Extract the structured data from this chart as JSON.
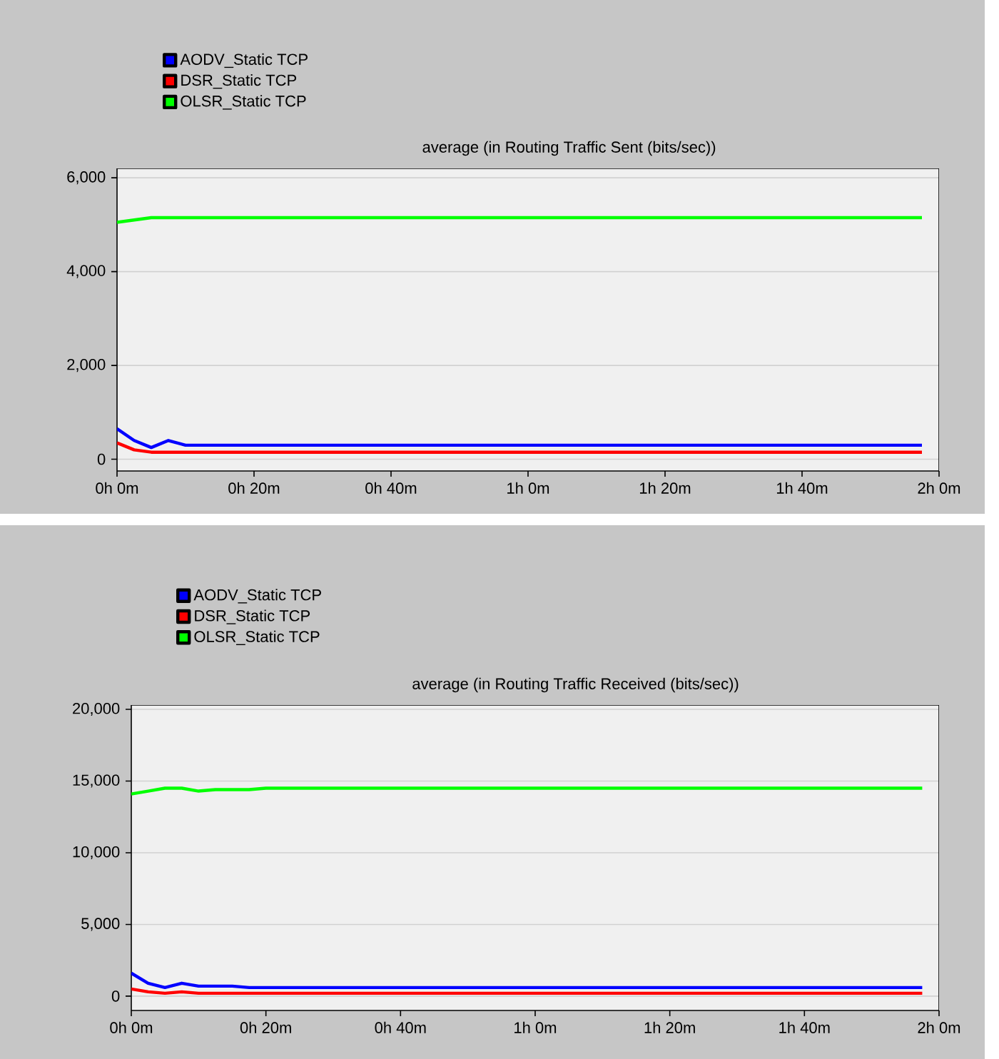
{
  "chart_data": [
    {
      "type": "line",
      "title": "average (in Routing Traffic Sent (bits/sec))",
      "categories": [
        "0h 0m",
        null,
        null,
        null,
        null,
        null,
        null,
        null,
        "0h 20m",
        null,
        null,
        null,
        null,
        null,
        null,
        null,
        "0h 40m",
        null,
        null,
        null,
        null,
        null,
        null,
        null,
        "1h 0m",
        null,
        null,
        null,
        null,
        null,
        null,
        null,
        "1h 20m",
        null,
        null,
        null,
        null,
        null,
        null,
        null,
        "1h 40m",
        null,
        null,
        null,
        null,
        null,
        null,
        null,
        "2h 0m"
      ],
      "series": [
        {
          "name": "AODV_Static TCP",
          "color": "#0000ff",
          "values": [
            650,
            400,
            250,
            400,
            300,
            300,
            300,
            300,
            300,
            300,
            300,
            300,
            300,
            300,
            300,
            300,
            300,
            300,
            300,
            300,
            300,
            300,
            300,
            300,
            300,
            300,
            300,
            300,
            300,
            300,
            300,
            300,
            300,
            300,
            300,
            300,
            300,
            300,
            300,
            300,
            300,
            300,
            300,
            300,
            300,
            300,
            300,
            300,
            null
          ]
        },
        {
          "name": "DSR_Static TCP",
          "color": "#ff0000",
          "values": [
            350,
            200,
            150,
            150,
            150,
            150,
            150,
            150,
            150,
            150,
            150,
            150,
            150,
            150,
            150,
            150,
            150,
            150,
            150,
            150,
            150,
            150,
            150,
            150,
            150,
            150,
            150,
            150,
            150,
            150,
            150,
            150,
            150,
            150,
            150,
            150,
            150,
            150,
            150,
            150,
            150,
            150,
            150,
            150,
            150,
            150,
            150,
            150,
            null
          ]
        },
        {
          "name": "OLSR_Static TCP",
          "color": "#00ff00",
          "values": [
            5050,
            5100,
            5150,
            5150,
            5150,
            5150,
            5150,
            5150,
            5150,
            5150,
            5150,
            5150,
            5150,
            5150,
            5150,
            5150,
            5150,
            5150,
            5150,
            5150,
            5150,
            5150,
            5150,
            5150,
            5150,
            5150,
            5150,
            5150,
            5150,
            5150,
            5150,
            5150,
            5150,
            5150,
            5150,
            5150,
            5150,
            5150,
            5150,
            5150,
            5150,
            5150,
            5150,
            5150,
            5150,
            5150,
            5150,
            5150,
            null
          ]
        }
      ],
      "ylim": [
        -250,
        6200
      ],
      "yticks": [
        0,
        {
          "value": 2000,
          "label": "2,000"
        },
        {
          "value": 4000,
          "label": "4,000"
        },
        {
          "value": 6000,
          "label": "6,000"
        }
      ],
      "grid": "y",
      "legend": "top left",
      "marker": "none",
      "line_style": "solid"
    },
    {
      "type": "line",
      "title": "average (in Routing Traffic Received (bits/sec))",
      "categories": [
        "0h 0m",
        null,
        null,
        null,
        null,
        null,
        null,
        null,
        "0h 20m",
        null,
        null,
        null,
        null,
        null,
        null,
        null,
        "0h 40m",
        null,
        null,
        null,
        null,
        null,
        null,
        null,
        "1h 0m",
        null,
        null,
        null,
        null,
        null,
        null,
        null,
        "1h 20m",
        null,
        null,
        null,
        null,
        null,
        null,
        null,
        "1h 40m",
        null,
        null,
        null,
        null,
        null,
        null,
        null,
        "2h 0m"
      ],
      "series": [
        {
          "name": "AODV_Static TCP",
          "color": "#0000ff",
          "values": [
            1600,
            900,
            600,
            900,
            700,
            700,
            700,
            600,
            600,
            600,
            600,
            600,
            600,
            600,
            600,
            600,
            600,
            600,
            600,
            600,
            600,
            600,
            600,
            600,
            600,
            600,
            600,
            600,
            600,
            600,
            600,
            600,
            600,
            600,
            600,
            600,
            600,
            600,
            600,
            600,
            600,
            600,
            600,
            600,
            600,
            600,
            600,
            600,
            null
          ]
        },
        {
          "name": "DSR_Static TCP",
          "color": "#ff0000",
          "values": [
            500,
            300,
            200,
            300,
            200,
            200,
            200,
            200,
            200,
            200,
            200,
            200,
            200,
            200,
            200,
            200,
            200,
            200,
            200,
            200,
            200,
            200,
            200,
            200,
            200,
            200,
            200,
            200,
            200,
            200,
            200,
            200,
            200,
            200,
            200,
            200,
            200,
            200,
            200,
            200,
            200,
            200,
            200,
            200,
            200,
            200,
            200,
            200,
            null
          ]
        },
        {
          "name": "OLSR_Static TCP",
          "color": "#00ff00",
          "values": [
            14100,
            14300,
            14500,
            14500,
            14300,
            14400,
            14400,
            14400,
            14500,
            14500,
            14500,
            14500,
            14500,
            14500,
            14500,
            14500,
            14500,
            14500,
            14500,
            14500,
            14500,
            14500,
            14500,
            14500,
            14500,
            14500,
            14500,
            14500,
            14500,
            14500,
            14500,
            14500,
            14500,
            14500,
            14500,
            14500,
            14500,
            14500,
            14500,
            14500,
            14500,
            14500,
            14500,
            14500,
            14500,
            14500,
            14500,
            14500,
            null
          ]
        }
      ],
      "ylim": [
        -1000,
        20300
      ],
      "yticks": [
        0,
        {
          "value": 5000,
          "label": "5,000"
        },
        {
          "value": 10000,
          "label": "10,000"
        },
        {
          "value": 15000,
          "label": "15,000"
        },
        {
          "value": 20000,
          "label": "20,000"
        }
      ],
      "grid": "y",
      "legend": "top left",
      "marker": "none",
      "line_style": "solid"
    }
  ]
}
